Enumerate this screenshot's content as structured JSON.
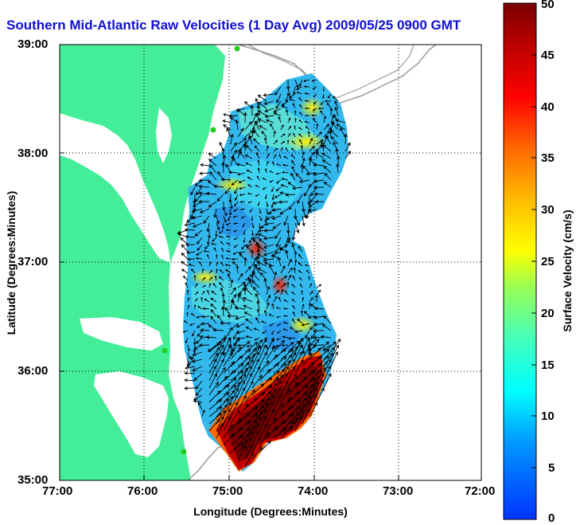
{
  "title": "Southern Mid-Atlantic Raw Velocities (1 Day Avg) 2009/05/25 0900 GMT",
  "axes": {
    "xlabel": "Longitude (Degrees:Minutes)",
    "ylabel": "Latitude (Degrees:Minutes)",
    "xticks": [
      "77:00",
      "76:00",
      "75:00",
      "74:00",
      "73:00",
      "72:00"
    ],
    "yticks": [
      "39:00",
      "38:00",
      "37:00",
      "36:00",
      "35:00"
    ],
    "xlim": [
      -77,
      -72
    ],
    "ylim": [
      35,
      39
    ]
  },
  "colorbar": {
    "label": "Surface Velocity (cm/s)",
    "ticks": [
      "0",
      "5",
      "10",
      "15",
      "20",
      "25",
      "30",
      "35",
      "40",
      "45",
      "50"
    ],
    "range": [
      0,
      50
    ]
  },
  "colors": {
    "land": "#44ee99",
    "title": "#1010d0",
    "station": "#22cc22"
  }
}
